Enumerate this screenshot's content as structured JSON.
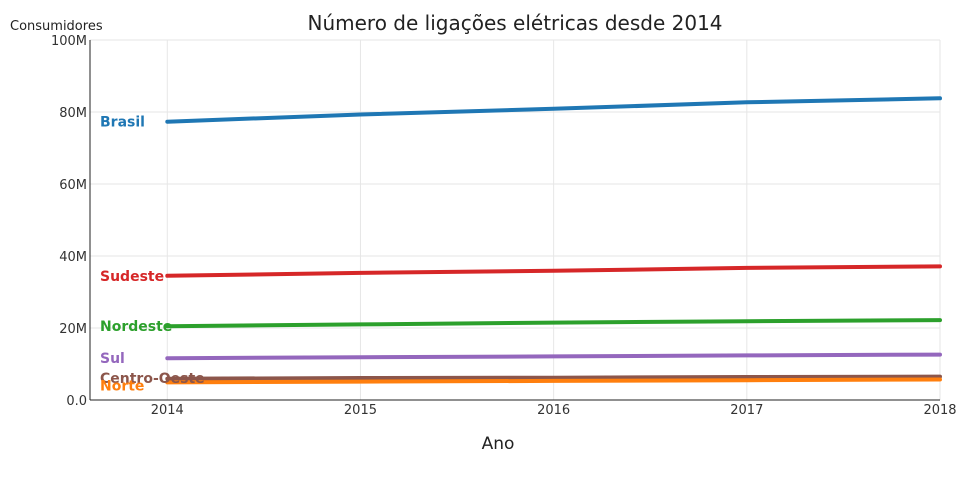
{
  "chart_data": {
    "type": "line",
    "title": "Número de ligações elétricas desde 2014",
    "xlabel": "Ano",
    "ylabel": "Consumidores",
    "x": [
      2014,
      2015,
      2016,
      2017,
      2018
    ],
    "x_tick_labels": [
      "2014",
      "2015",
      "2016",
      "2017",
      "2018"
    ],
    "xlim": [
      2013.6,
      2018
    ],
    "ylim": [
      0,
      100000000
    ],
    "y_ticks": [
      0,
      20000000,
      40000000,
      60000000,
      80000000,
      100000000
    ],
    "y_tick_labels": [
      "0.0",
      "20M",
      "40M",
      "60M",
      "80M",
      "100M"
    ],
    "grid": true,
    "legend": "labels at left of lines",
    "series": [
      {
        "name": "Brasil",
        "color": "#1f77b4",
        "values": [
          77300000,
          79300000,
          80900000,
          82700000,
          83800000
        ]
      },
      {
        "name": "Sudeste",
        "color": "#d62728",
        "values": [
          34500000,
          35300000,
          35900000,
          36700000,
          37100000
        ]
      },
      {
        "name": "Nordeste",
        "color": "#2ca02c",
        "values": [
          20500000,
          21000000,
          21500000,
          21900000,
          22200000
        ]
      },
      {
        "name": "Sul",
        "color": "#9467bd",
        "values": [
          11600000,
          11900000,
          12100000,
          12400000,
          12600000
        ]
      },
      {
        "name": "Centro-Oeste",
        "color": "#8c564b",
        "values": [
          5900000,
          6100000,
          6200000,
          6400000,
          6500000
        ]
      },
      {
        "name": "Norte",
        "color": "#ff7f0e",
        "values": [
          4900000,
          5100000,
          5300000,
          5500000,
          5700000
        ]
      }
    ]
  }
}
